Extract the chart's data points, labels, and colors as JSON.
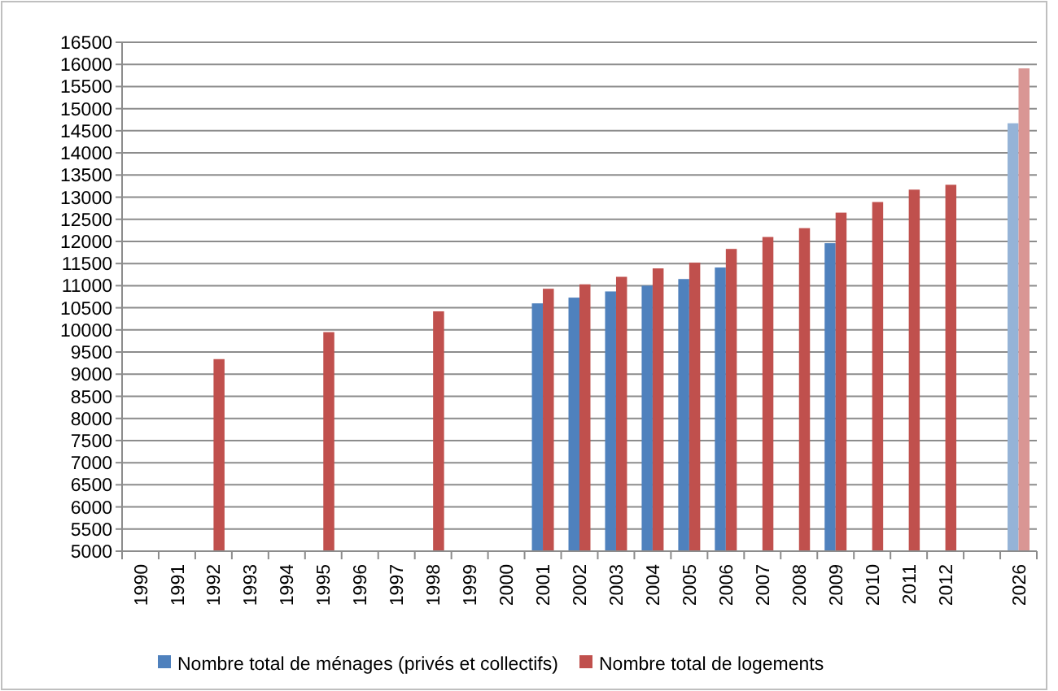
{
  "chart_data": {
    "type": "bar",
    "categories": [
      "1990",
      "1991",
      "1992",
      "1993",
      "1994",
      "1995",
      "1996",
      "1997",
      "1998",
      "1999",
      "2000",
      "2001",
      "2002",
      "2003",
      "2004",
      "2005",
      "2006",
      "2007",
      "2008",
      "2009",
      "2010",
      "2011",
      "2012",
      null,
      "2026"
    ],
    "series": [
      {
        "name": "Nombre total de ménages (privés et collectifs)",
        "color": "#4f81bd",
        "colors": [
          "#4f81bd",
          "#4f81bd",
          "#4f81bd",
          "#4f81bd",
          "#4f81bd",
          "#4f81bd",
          "#4f81bd",
          "#4f81bd",
          "#4f81bd",
          "#4f81bd",
          "#4f81bd",
          "#4f81bd",
          "#4f81bd",
          "#4f81bd",
          "#4f81bd",
          "#4f81bd",
          "#4f81bd",
          "#4f81bd",
          "#4f81bd",
          "#4f81bd",
          "#4f81bd",
          "#4f81bd",
          "#4f81bd",
          "#4f81bd",
          "#95b3d7"
        ],
        "values": [
          null,
          null,
          null,
          null,
          null,
          null,
          null,
          null,
          null,
          null,
          null,
          10600,
          10730,
          10870,
          11000,
          11150,
          11410,
          null,
          null,
          11960,
          null,
          null,
          null,
          null,
          14670
        ]
      },
      {
        "name": "Nombre total de logements",
        "color": "#c0504d",
        "colors": [
          "#c0504d",
          "#c0504d",
          "#c0504d",
          "#c0504d",
          "#c0504d",
          "#c0504d",
          "#c0504d",
          "#c0504d",
          "#c0504d",
          "#c0504d",
          "#c0504d",
          "#c0504d",
          "#c0504d",
          "#c0504d",
          "#c0504d",
          "#c0504d",
          "#c0504d",
          "#c0504d",
          "#c0504d",
          "#c0504d",
          "#c0504d",
          "#c0504d",
          "#c0504d",
          "#c0504d",
          "#d99694"
        ],
        "values": [
          null,
          null,
          9340,
          null,
          null,
          9950,
          null,
          null,
          10420,
          null,
          null,
          10930,
          11030,
          11200,
          11390,
          11520,
          11830,
          12100,
          12300,
          12650,
          12890,
          13170,
          13280,
          null,
          15910
        ]
      }
    ],
    "ylim": [
      5000,
      16500
    ],
    "yticks": [
      5000,
      5500,
      6000,
      6500,
      7000,
      7500,
      8000,
      8500,
      9000,
      9500,
      10000,
      10500,
      11000,
      11500,
      12000,
      12500,
      13000,
      13500,
      14000,
      14500,
      15000,
      15500,
      16000,
      16500
    ],
    "grid": "y",
    "legend": "bottom"
  }
}
